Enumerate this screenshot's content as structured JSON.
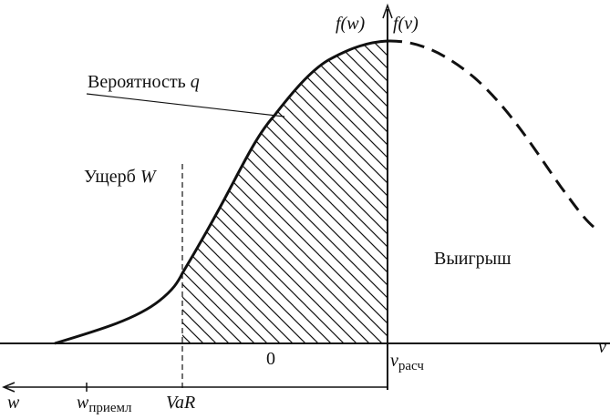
{
  "axes": {
    "f_w": {
      "text": "f(w)"
    },
    "f_v": {
      "text": "f(v)"
    },
    "v": "v",
    "w": "w"
  },
  "labels": {
    "probability": {
      "text": "Вероятность",
      "symbol": "q"
    },
    "loss": {
      "text": "Ущерб",
      "symbol": "W"
    },
    "gain": "Выигрыш",
    "zero": "0",
    "v_calc": {
      "main": "v",
      "sub": "расч"
    },
    "w_acceptable": {
      "main": "w",
      "sub": "приемл"
    },
    "var": "VaR"
  }
}
